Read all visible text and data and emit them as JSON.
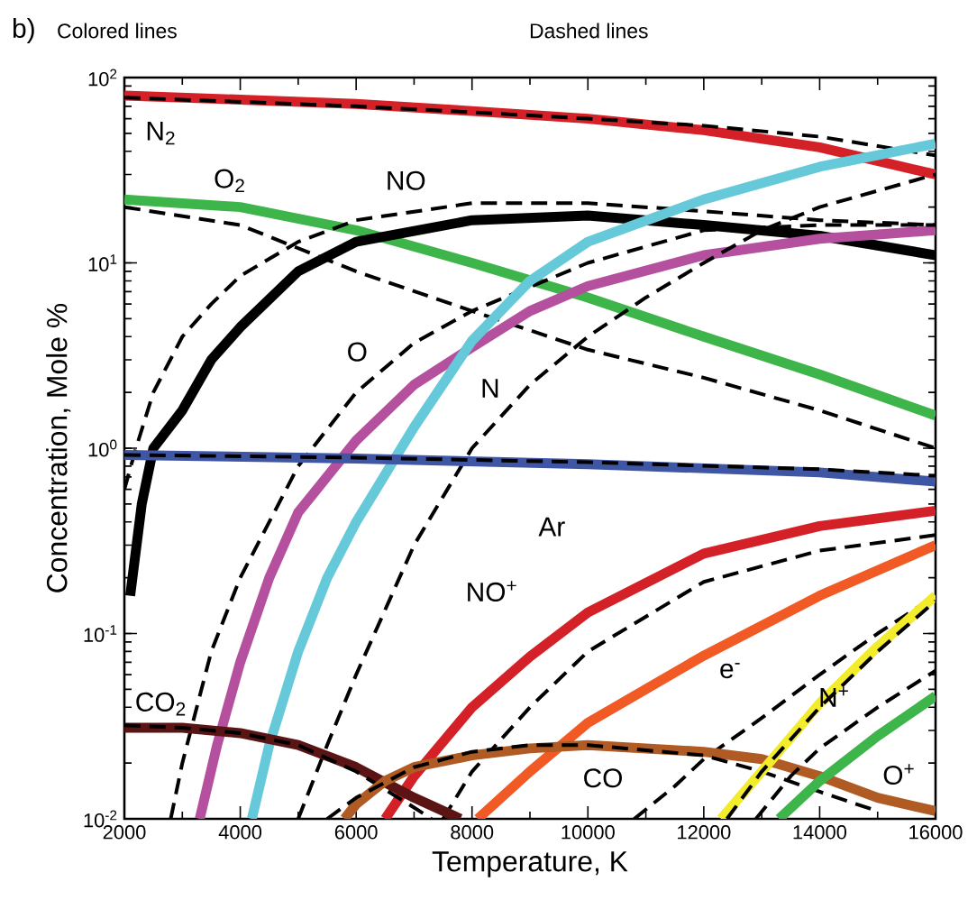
{
  "chart_data": {
    "type": "line",
    "title": "b)",
    "xlabel": "Temperature, K",
    "ylabel": "Concentration, Mole %",
    "log": true,
    "xlim": [
      2000,
      16000
    ],
    "ylim": [
      0.01,
      100
    ],
    "xticks": [
      2000,
      4000,
      6000,
      8000,
      10000,
      12000,
      14000,
      16000
    ],
    "yticks": [
      {
        "value": 0.01,
        "label": "10$^{-2}$"
      },
      {
        "value": 0.1,
        "label": "10$^{-1}$"
      },
      {
        "value": 1,
        "label": "10$^{0}$"
      },
      {
        "value": 10,
        "label": "10$^{1}$"
      },
      {
        "value": 100,
        "label": "10$^{2}$"
      }
    ],
    "series": [
      {
        "color": "#d42027",
        "line_style": "solid",
        "x": [
          2000,
          4000,
          6000,
          8000,
          10000,
          12000,
          14000,
          16000
        ],
        "values": [
          80,
          76,
          72,
          66,
          60,
          52,
          42,
          30
        ]
      },
      {
        "color": "#000000",
        "line_style": "dashed",
        "x": [
          2000,
          4000,
          6000,
          8000,
          10000,
          12000,
          14000,
          16000
        ],
        "values": [
          78,
          74,
          70,
          65,
          60,
          55,
          48,
          38
        ]
      },
      {
        "color": "#3db54a",
        "line_style": "solid",
        "x": [
          2000,
          4000,
          6000,
          8000,
          10000,
          12000,
          14000,
          16000
        ],
        "values": [
          22,
          20,
          15,
          10,
          6.5,
          4,
          2.5,
          1.5
        ]
      },
      {
        "color": "#000000",
        "line_style": "dashed",
        "x": [
          2000,
          4000,
          6000,
          8000,
          10000,
          12000,
          14000,
          16000
        ],
        "values": [
          20,
          16,
          9,
          5.5,
          3.4,
          2.4,
          1.6,
          1.0
        ]
      },
      {
        "color": "#000000",
        "line_style": "solid",
        "x": [
          2100,
          2300,
          2500,
          3000,
          3500,
          4000,
          5000,
          6000,
          8000,
          10000,
          12000,
          14000,
          16000
        ],
        "values": [
          0.16,
          0.5,
          1.0,
          1.6,
          3,
          4.5,
          9,
          13,
          17,
          18,
          16,
          14,
          11
        ]
      },
      {
        "color": "#000000",
        "line_style": "dashed",
        "x": [
          2000,
          2200,
          2500,
          3000,
          3500,
          4000,
          5000,
          6000,
          8000,
          10000,
          12000,
          14000,
          16000
        ],
        "values": [
          0.6,
          1.0,
          2.0,
          4,
          6,
          8.5,
          13,
          17,
          21,
          21,
          19,
          17,
          16
        ]
      },
      {
        "color": "#b5509f",
        "line_style": "solid",
        "x": [
          3300,
          3600,
          4000,
          4500,
          5000,
          6000,
          7000,
          8000,
          9000,
          10000,
          12000,
          14000,
          16000
        ],
        "values": [
          0.01,
          0.025,
          0.07,
          0.2,
          0.45,
          1.1,
          2.2,
          3.5,
          5.5,
          7.5,
          11,
          13.5,
          15
        ]
      },
      {
        "color": "#000000",
        "line_style": "dashed",
        "x": [
          2800,
          3000,
          3500,
          4000,
          5000,
          6000,
          7000,
          8000,
          10000,
          12000,
          14000,
          16000
        ],
        "values": [
          0.01,
          0.02,
          0.08,
          0.2,
          0.8,
          2,
          3.7,
          5.5,
          10,
          15,
          16,
          16
        ]
      },
      {
        "color": "#66c9d9",
        "line_style": "solid",
        "x": [
          4200,
          4500,
          5000,
          5500,
          6000,
          7000,
          8000,
          9000,
          10000,
          12000,
          14000,
          16000
        ],
        "values": [
          0.01,
          0.025,
          0.08,
          0.2,
          0.4,
          1.3,
          3.8,
          8,
          13,
          22,
          33,
          44
        ]
      },
      {
        "color": "#000000",
        "line_style": "dashed",
        "x": [
          5000,
          5500,
          6000,
          7000,
          8000,
          9000,
          10000,
          11000,
          12000,
          13000,
          14000,
          16000
        ],
        "values": [
          0.01,
          0.025,
          0.06,
          0.3,
          1.0,
          2.2,
          4,
          6.5,
          10,
          15,
          20,
          30
        ]
      },
      {
        "color": "#3f56a5",
        "line_style": "solid",
        "x": [
          2000,
          6000,
          10000,
          14000,
          16000
        ],
        "values": [
          0.92,
          0.88,
          0.82,
          0.74,
          0.66
        ]
      },
      {
        "color": "#000000",
        "line_style": "dashed",
        "x": [
          2000,
          6000,
          10000,
          14000,
          16000
        ],
        "values": [
          0.92,
          0.89,
          0.84,
          0.77,
          0.71
        ]
      },
      {
        "color": "#d42027",
        "line_style": "solid",
        "x": [
          6500,
          7000,
          8000,
          9000,
          10000,
          12000,
          14000,
          16000
        ],
        "values": [
          0.01,
          0.017,
          0.04,
          0.075,
          0.13,
          0.27,
          0.38,
          0.46
        ]
      },
      {
        "color": "#000000",
        "line_style": "dashed",
        "x": [
          7500,
          8000,
          9000,
          10000,
          12000,
          14000,
          16000
        ],
        "values": [
          0.01,
          0.018,
          0.04,
          0.08,
          0.19,
          0.28,
          0.34
        ]
      },
      {
        "color": "#f15a24",
        "line_style": "solid",
        "x": [
          8100,
          9000,
          10000,
          12000,
          14000,
          16000
        ],
        "values": [
          0.01,
          0.018,
          0.033,
          0.076,
          0.16,
          0.3
        ]
      },
      {
        "color": "#000000",
        "line_style": "dashed",
        "x": [
          10800,
          11500,
          12000,
          13000,
          14000,
          15000,
          16000
        ],
        "values": [
          0.01,
          0.015,
          0.021,
          0.035,
          0.06,
          0.1,
          0.16
        ]
      },
      {
        "color": "#5a1414",
        "line_style": "solid",
        "x": [
          2000,
          3000,
          4000,
          5000,
          6000,
          7000,
          7800
        ],
        "values": [
          0.031,
          0.031,
          0.029,
          0.025,
          0.019,
          0.013,
          0.01
        ]
      },
      {
        "color": "#000000",
        "line_style": "dashed",
        "x": [
          2000,
          3000,
          4000,
          5000,
          6000,
          7000,
          7300
        ],
        "values": [
          0.032,
          0.031,
          0.029,
          0.025,
          0.018,
          0.0115,
          0.01
        ]
      },
      {
        "color": "#b05a24",
        "line_style": "solid",
        "x": [
          5800,
          6000,
          6500,
          7000,
          8000,
          9000,
          10000,
          12000,
          13000,
          14000,
          15000,
          16000
        ],
        "values": [
          0.01,
          0.012,
          0.016,
          0.019,
          0.022,
          0.024,
          0.025,
          0.023,
          0.021,
          0.017,
          0.013,
          0.011
        ]
      },
      {
        "color": "#000000",
        "line_style": "dashed",
        "x": [
          5500,
          6000,
          7000,
          8000,
          9000,
          10000,
          12000,
          13000,
          14000,
          15000
        ],
        "values": [
          0.01,
          0.013,
          0.019,
          0.023,
          0.025,
          0.025,
          0.022,
          0.018,
          0.014,
          0.011
        ]
      },
      {
        "color": "#f2ec2a",
        "line_style": "solid",
        "x": [
          12300,
          13000,
          14000,
          15000,
          16000
        ],
        "values": [
          0.01,
          0.018,
          0.042,
          0.085,
          0.16
        ]
      },
      {
        "color": "#000000",
        "line_style": "dashed",
        "x": [
          12400,
          13000,
          14000,
          15000,
          16000
        ],
        "values": [
          0.01,
          0.018,
          0.04,
          0.08,
          0.15
        ]
      },
      {
        "color": "#3db54a",
        "line_style": "solid",
        "x": [
          13300,
          14000,
          15000,
          16000
        ],
        "values": [
          0.01,
          0.016,
          0.028,
          0.046
        ]
      },
      {
        "color": "#000000",
        "line_style": "dashed",
        "x": [
          12900,
          13500,
          14000,
          15000,
          16000
        ],
        "values": [
          0.01,
          0.017,
          0.024,
          0.04,
          0.063
        ]
      }
    ],
    "annotations": [
      "Colored lines",
      "Dashed lines",
      "N$_{2}$",
      "O$_{2}$",
      "NO",
      "O",
      "N",
      "Ar",
      "NO$^{+}$",
      "e$^{-}$",
      "N$^{+}$",
      "O$^{+}$",
      "CO$_{2}$",
      "CO"
    ]
  }
}
